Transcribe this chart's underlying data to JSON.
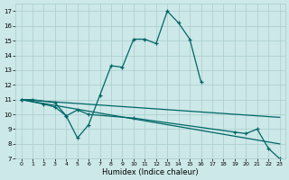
{
  "title": "",
  "xlabel": "Humidex (Indice chaleur)",
  "bg_color": "#cce8e8",
  "grid_color": "#aacccc",
  "line_color": "#006666",
  "xlim": [
    -0.5,
    23.5
  ],
  "ylim": [
    7,
    17.5
  ],
  "xticks": [
    0,
    1,
    2,
    3,
    4,
    5,
    6,
    7,
    8,
    9,
    10,
    11,
    12,
    13,
    14,
    15,
    16,
    17,
    18,
    19,
    20,
    21,
    22,
    23
  ],
  "yticks": [
    7,
    8,
    9,
    10,
    11,
    12,
    13,
    14,
    15,
    16,
    17
  ],
  "series_main": {
    "x": [
      0,
      1,
      3,
      4,
      5,
      6,
      7,
      8,
      9,
      10,
      11,
      12,
      13,
      14,
      15,
      16
    ],
    "y": [
      11,
      11,
      10.8,
      9.9,
      8.4,
      9.3,
      11.3,
      13.3,
      13.2,
      15.1,
      15.1,
      14.8,
      17.0,
      16.2,
      15.1,
      12.2
    ]
  },
  "series_flat1": {
    "x": [
      0,
      23
    ],
    "y": [
      11,
      9.8
    ]
  },
  "series_flat2": {
    "x": [
      0,
      23
    ],
    "y": [
      11,
      8.0
    ]
  },
  "series_markers": {
    "x": [
      0,
      2,
      3,
      4,
      5,
      6,
      10,
      19,
      20,
      21,
      22,
      23
    ],
    "y": [
      11,
      10.7,
      10.5,
      9.9,
      10.3,
      10.0,
      9.75,
      8.8,
      8.7,
      9.0,
      7.7,
      7.0
    ]
  }
}
